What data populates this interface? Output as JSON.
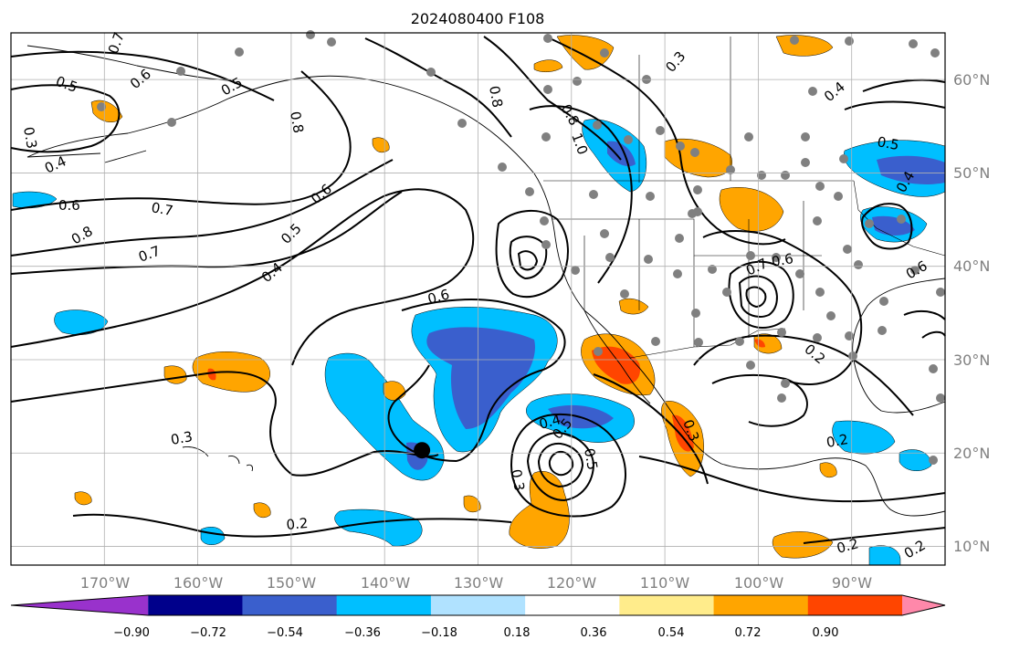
{
  "title": "2024080400 F108",
  "map": {
    "lon_range": [
      -180,
      -80
    ],
    "lat_range": [
      8,
      65
    ],
    "longitude_labels": [
      "170°W",
      "160°W",
      "150°W",
      "140°W",
      "130°W",
      "120°W",
      "110°W",
      "100°W",
      "90°W"
    ],
    "latitude_labels": [
      "60°N",
      "50°N",
      "40°N",
      "30°N",
      "20°N",
      "10°N"
    ],
    "grid": true,
    "storm_marker": {
      "lon": -136,
      "lat": 20.3
    },
    "contour_labels": [
      "0.7",
      "0.5",
      "0.6",
      "0.3",
      "0.4",
      "0.5",
      "0.8",
      "0.6",
      "0.7",
      "0.8",
      "0.7",
      "0.6",
      "0.5",
      "0.4",
      "0.6",
      "0.8",
      "0.8",
      "1.0",
      "0.3",
      "0.4",
      "0.5",
      "0.4",
      "0.6",
      "0.7",
      "0.6",
      "0.2",
      "0.3",
      "0.4",
      "0.5",
      "0.5",
      "0.3",
      "0.3",
      "0.2",
      "0.2",
      "0.2",
      "0.2"
    ],
    "shading": "anomaly fill levels per colorbar"
  },
  "colorbar": {
    "colors": [
      "#9932cc",
      "#00008b",
      "#3a5fcd",
      "#00bfff",
      "#b0e2ff",
      "#ffffff",
      "#ffec8b",
      "#ffa500",
      "#ff4500",
      "#b22222",
      "#ff88aa"
    ],
    "tick_labels": [
      "−0.90",
      "−0.72",
      "−0.54",
      "−0.36",
      "−0.18",
      "0.18",
      "0.36",
      "0.54",
      "0.72",
      "0.90"
    ],
    "extend": "both"
  }
}
